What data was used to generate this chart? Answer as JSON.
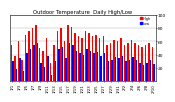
{
  "title": "Outdoor Temperature  Daily High/Low",
  "title_fontsize": 3.8,
  "background_color": "#ffffff",
  "bar_color_high": "#ff0000",
  "bar_color_low": "#0000ff",
  "ylim": [
    0,
    100
  ],
  "yticks": [
    20,
    40,
    60,
    80,
    100
  ],
  "ylabel_fontsize": 3.2,
  "xlabel_fontsize": 2.8,
  "legend_high": "High",
  "legend_low": "Low",
  "days": [
    "1/1",
    "1/2",
    "1/3",
    "1/4",
    "1/5",
    "1/6",
    "1/7",
    "1/8",
    "1/9",
    "1/10",
    "1/11",
    "1/12",
    "1/13",
    "1/14",
    "1/15",
    "1/16",
    "1/17",
    "1/18",
    "1/19",
    "1/20",
    "1/21",
    "1/22",
    "1/23",
    "1/24",
    "1/25",
    "1/26",
    "1/27",
    "1/28",
    "1/29",
    "1/30",
    "1/31",
    "2/1",
    "2/2",
    "2/3",
    "2/4",
    "2/5",
    "2/6",
    "2/7",
    "2/8",
    "2/9",
    "2/10"
  ],
  "highs": [
    55,
    38,
    60,
    32,
    70,
    75,
    80,
    85,
    50,
    45,
    65,
    28,
    55,
    75,
    80,
    60,
    85,
    82,
    72,
    68,
    65,
    75,
    72,
    68,
    70,
    65,
    68,
    55,
    58,
    62,
    60,
    65,
    55,
    58,
    62,
    58,
    55,
    52,
    55,
    58,
    52
  ],
  "lows": [
    30,
    18,
    35,
    15,
    42,
    48,
    55,
    58,
    28,
    22,
    38,
    10,
    30,
    48,
    52,
    35,
    58,
    55,
    45,
    42,
    40,
    48,
    45,
    42,
    44,
    38,
    42,
    30,
    32,
    36,
    35,
    38,
    30,
    32,
    36,
    32,
    28,
    25,
    28,
    32,
    26
  ]
}
